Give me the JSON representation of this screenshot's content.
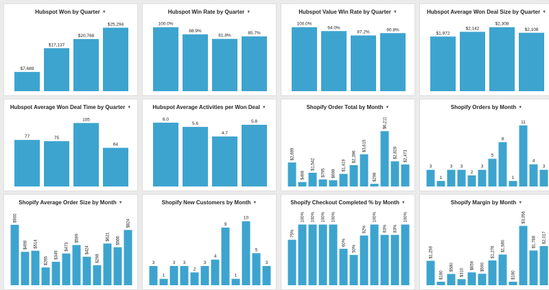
{
  "theme": {
    "bar_color": "#3da4cf",
    "background": "#ebebeb",
    "tile_background": "#ffffff"
  },
  "tiles": [
    {
      "title": "Hubspot Won by Quarter",
      "chart_data": {
        "type": "bar",
        "ylim": [
          0,
          26500
        ],
        "series": [
          {
            "values": [
              7689,
              17137,
              20768,
              25294
            ],
            "labels": [
              "$7,689",
              "$17,137",
              "$20,768",
              "$25,294"
            ]
          }
        ]
      }
    },
    {
      "title": "Hubspot Win Rate by Quarter",
      "chart_data": {
        "type": "bar",
        "ylim": [
          0,
          104
        ],
        "series": [
          {
            "values": [
              100.0,
              88.9,
              81.8,
              85.7
            ],
            "labels": [
              "100.0%",
              "88.9%",
              "81.8%",
              "85.7%"
            ]
          }
        ]
      }
    },
    {
      "title": "Hubspot Value Win Rate by Quarter",
      "chart_data": {
        "type": "bar",
        "ylim": [
          0,
          104
        ],
        "series": [
          {
            "values": [
              100.0,
              94.0,
              87.2,
              90.8
            ],
            "labels": [
              "100.0%",
              "94.0%",
              "87.2%",
              "90.8%"
            ]
          }
        ]
      }
    },
    {
      "title": "Hubspot Average Won Deal Size by Quarter",
      "chart_data": {
        "type": "bar",
        "ylim": [
          0,
          2400
        ],
        "series": [
          {
            "values": [
              1972,
              2142,
              2308,
              2108
            ],
            "labels": [
              "$1,972",
              "$2,142",
              "$2,308",
              "$2,108"
            ]
          }
        ]
      }
    },
    {
      "title": "Hubspot Average Won Deal Time by Quarter",
      "chart_data": {
        "type": "bar",
        "ylim": [
          0,
          110
        ],
        "series": [
          {
            "values": [
              77,
              75,
              105,
              64
            ],
            "labels": [
              "77",
              "75",
              "105",
              "64"
            ]
          }
        ]
      }
    },
    {
      "title": "Hubspot Average Activities per Won Deal",
      "chart_data": {
        "type": "bar",
        "ylim": [
          0,
          6.25
        ],
        "series": [
          {
            "values": [
              6.0,
              5.6,
              4.7,
              5.8
            ],
            "labels": [
              "6.0",
              "5.6",
              "4.7",
              "5.8"
            ]
          }
        ]
      }
    },
    {
      "title": "Shopify Order Total by Month",
      "chart_data": {
        "type": "bar",
        "ylim": [
          0,
          6700
        ],
        "rotate_labels": true,
        "series": [
          {
            "values": [
              2699,
              498,
              1542,
              795,
              698,
              1419,
              2396,
              3615,
              298,
              6211,
              2828,
              2473
            ],
            "labels": [
              "$2,699",
              "$498",
              "$1,542",
              "$795",
              "$698",
              "$1,419",
              "$2,396",
              "$3,615",
              "$298",
              "$6,211",
              "$2,828",
              "$2,473"
            ]
          }
        ]
      }
    },
    {
      "title": "Shopify Orders by Month",
      "chart_data": {
        "type": "bar",
        "ylim": [
          0,
          11.5
        ],
        "series": [
          {
            "values": [
              3,
              1,
              3,
              3,
              2,
              3,
              5,
              8,
              1,
              11,
              4,
              3
            ],
            "labels": [
              "3",
              "1",
              "3",
              "3",
              "2",
              "3",
              "5",
              "8",
              "1",
              "11",
              "4",
              "3"
            ]
          }
        ]
      }
    },
    {
      "title": "Shopify Average Order Size by Month",
      "chart_data": {
        "type": "bar",
        "ylim": [
          0,
          940
        ],
        "rotate_labels": true,
        "series": [
          {
            "values": [
              900,
              498,
              514,
              265,
              349,
              473,
              599,
              424,
              298,
              621,
              566,
              824
            ],
            "labels": [
              "$900",
              "$498",
              "$514",
              "$265",
              "$349",
              "$473",
              "$599",
              "$424",
              "$298",
              "$621",
              "$566",
              "$824"
            ]
          }
        ]
      }
    },
    {
      "title": "Shopify New Customers by Month",
      "chart_data": {
        "type": "bar",
        "ylim": [
          0,
          10.5
        ],
        "series": [
          {
            "values": [
              3,
              1,
              3,
              3,
              2,
              3,
              4,
              9,
              1,
              10,
              5,
              3
            ],
            "labels": [
              "3",
              "1",
              "3",
              "3",
              "2",
              "3",
              "4",
              "9",
              "1",
              "10",
              "5",
              "3"
            ]
          }
        ]
      }
    },
    {
      "title": "Shopify Checkout Completed % by Month",
      "chart_data": {
        "type": "bar",
        "ylim": [
          0,
          104
        ],
        "rotate_labels": true,
        "series": [
          {
            "values": [
              75,
              100,
              100,
              100,
              100,
              60,
              50,
              82,
              100,
              83,
              83,
              100
            ],
            "labels": [
              "75%",
              "100%",
              "100%",
              "100%",
              "100%",
              "60%",
              "50%",
              "82%",
              "100%",
              "83%",
              "83%",
              "100%"
            ]
          }
        ]
      }
    },
    {
      "title": "Shopify Margin by Month",
      "chart_data": {
        "type": "bar",
        "ylim": [
          0,
          3250
        ],
        "rotate_labels": true,
        "series": [
          {
            "values": [
              1259,
              180,
              580,
              310,
              659,
              590,
              1276,
              1580,
              180,
              3056,
              1788,
              2017
            ],
            "labels": [
              "$1,259",
              "$180",
              "$580",
              "$310",
              "$659",
              "$590",
              "$1,276",
              "$1,580",
              "$180",
              "$3,056",
              "$1,788",
              "$2,017"
            ]
          }
        ]
      }
    }
  ]
}
